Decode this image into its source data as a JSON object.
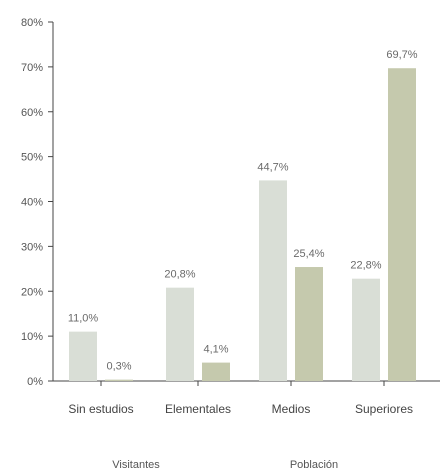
{
  "chart_data": {
    "type": "bar",
    "title": "",
    "xlabel": "",
    "ylabel": "",
    "categories": [
      "Sin estudios",
      "Elementales",
      "Medios",
      "Superiores"
    ],
    "series": [
      {
        "name": "Visitantes",
        "values": [
          11.0,
          20.8,
          44.7,
          22.8
        ],
        "labels": [
          "11,0%",
          "20,8%",
          "44,7%",
          "22,8%"
        ],
        "color": "#d9ded6"
      },
      {
        "name": "Población",
        "values": [
          0.3,
          4.1,
          25.4,
          69.7
        ],
        "labels": [
          "0,3%",
          "4,1%",
          "25,4%",
          "69,7%"
        ],
        "color": "#c5c9ad"
      }
    ],
    "ylim": [
      0,
      80
    ],
    "yticks": [
      0,
      10,
      20,
      30,
      40,
      50,
      60,
      70,
      80
    ],
    "ytick_labels": [
      "0%",
      "10%",
      "20%",
      "30%",
      "40%",
      "50%",
      "60%",
      "70%",
      "80%"
    ],
    "grid": false,
    "legend_placement": "bottom"
  }
}
